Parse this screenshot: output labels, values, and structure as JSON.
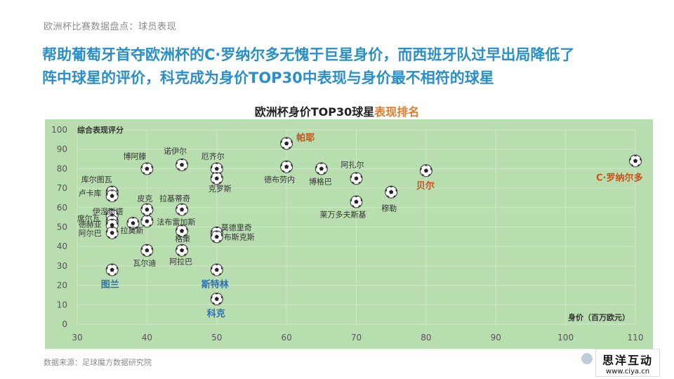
{
  "breadcrumb": "欧洲杯比赛数据盘点：球员表现",
  "headline": {
    "line1": "帮助葡萄牙首夺欧洲杯的C·罗纳尔多无愧于巨星身价，而西班牙队过早出局降低了",
    "line2": "阵中球星的评价，科克成为身价TOP30中表现与身价最不相符的球星"
  },
  "chart_title": {
    "part1": "欧洲杯身价TOP30球星",
    "part2": "表现排名"
  },
  "source": "数据来源：足球魔方数据研究院",
  "logo": {
    "main": "思洋互动",
    "url": "www.ciya.cn"
  },
  "colors": {
    "plot_bg": "#b8deb0",
    "headline": "#2a8fc9",
    "highlight_orange": "#c8511b",
    "highlight_blue": "#2f6fb3",
    "label_normal": "#333333"
  },
  "chart_data": {
    "type": "scatter",
    "title": "欧洲杯身价TOP30球星表现排名",
    "xlabel": "身价（百万欧元）",
    "ylabel": "综合表现评分",
    "xlim": [
      30,
      110
    ],
    "ylim": [
      0,
      100
    ],
    "xticks": [
      30,
      40,
      50,
      60,
      70,
      80,
      90,
      100,
      110
    ],
    "yticks": [
      0,
      10,
      20,
      30,
      40,
      50,
      60,
      70,
      80,
      90,
      100
    ],
    "grid": true,
    "points": [
      {
        "name": "帕耶",
        "x": 60,
        "y": 93,
        "style": "orange"
      },
      {
        "name": "C·罗纳尔多",
        "x": 110,
        "y": 84,
        "style": "orange"
      },
      {
        "name": "贝尔",
        "x": 80,
        "y": 79,
        "style": "orange"
      },
      {
        "name": "图兰",
        "x": 35,
        "y": 28,
        "style": "blue"
      },
      {
        "name": "斯特林",
        "x": 50,
        "y": 28,
        "style": "blue"
      },
      {
        "name": "科克",
        "x": 50,
        "y": 13,
        "style": "blue"
      },
      {
        "name": "博阿滕",
        "x": 40,
        "y": 80,
        "style": "normal"
      },
      {
        "name": "诺伊尔",
        "x": 45,
        "y": 82,
        "style": "normal"
      },
      {
        "name": "厄齐尔",
        "x": 50,
        "y": 80,
        "style": "normal"
      },
      {
        "name": "克罗斯",
        "x": 50,
        "y": 75,
        "style": "normal"
      },
      {
        "name": "德布劳内",
        "x": 60,
        "y": 81,
        "style": "normal"
      },
      {
        "name": "博格巴",
        "x": 65,
        "y": 80,
        "style": "normal"
      },
      {
        "name": "阿扎尔",
        "x": 70,
        "y": 75,
        "style": "normal"
      },
      {
        "name": "穆勒",
        "x": 75,
        "y": 68,
        "style": "normal"
      },
      {
        "name": "莱万多夫斯基",
        "x": 70,
        "y": 63,
        "style": "normal"
      },
      {
        "name": "库尔图瓦",
        "x": 35,
        "y": 68,
        "style": "normal"
      },
      {
        "name": "卢卡库",
        "x": 35,
        "y": 66,
        "style": "normal"
      },
      {
        "name": "皮克",
        "x": 40,
        "y": 59,
        "style": "normal"
      },
      {
        "name": "拉基蒂奇",
        "x": 45,
        "y": 59,
        "style": "normal"
      },
      {
        "name": "伊涅斯塔",
        "x": 35,
        "y": 56,
        "style": "normal"
      },
      {
        "name": "席尔瓦",
        "x": 35,
        "y": 53,
        "style": "normal"
      },
      {
        "name": "德赫亚",
        "x": 35,
        "y": 51,
        "style": "normal"
      },
      {
        "name": "阿尔巴",
        "x": 35,
        "y": 47,
        "style": "normal"
      },
      {
        "name": "拉莫斯",
        "x": 38,
        "y": 52,
        "style": "normal"
      },
      {
        "name": "法布雷加斯",
        "x": 40,
        "y": 53,
        "style": "normal"
      },
      {
        "name": "格策",
        "x": 45,
        "y": 48,
        "style": "normal"
      },
      {
        "name": "莫德里奇",
        "x": 50,
        "y": 47,
        "style": "normal"
      },
      {
        "name": "布斯克斯",
        "x": 50,
        "y": 45,
        "style": "normal"
      },
      {
        "name": "瓦尔迪",
        "x": 40,
        "y": 38,
        "style": "normal"
      },
      {
        "name": "阿拉巴",
        "x": 45,
        "y": 38,
        "style": "normal"
      }
    ]
  }
}
